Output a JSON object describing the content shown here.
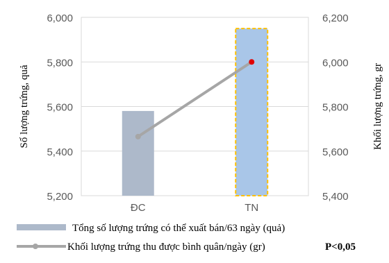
{
  "chart_data": {
    "type": "bar+line",
    "categories": [
      "ĐC",
      "TN"
    ],
    "series": [
      {
        "name": "Tổng số lượng trứng có thể xuất bán/63 ngày (quả)",
        "type": "bar",
        "axis": "left",
        "values": [
          5580,
          5950
        ],
        "colors": [
          "#adb9ca",
          "#a9c6e8"
        ],
        "highlight_index": 1
      },
      {
        "name": "Khối lượng trứng thu được bình quân/ngày (gr)",
        "type": "line",
        "axis": "right",
        "values": [
          5665,
          6000
        ],
        "color": "#a6a6a6",
        "marker_colors": [
          "#a6a6a6",
          "#e00000"
        ]
      }
    ],
    "y_left": {
      "label": "Số lượng trứng, quả",
      "min": 5200,
      "max": 6000,
      "ticks": [
        5200,
        5400,
        5600,
        5800,
        6000
      ],
      "tick_labels": [
        "5,200",
        "5,400",
        "5,600",
        "5,800",
        "6,000"
      ]
    },
    "y_right": {
      "label": "Khối lượng trứng, gr",
      "min": 5400,
      "max": 6200,
      "ticks": [
        5400,
        5600,
        5800,
        6000,
        6200
      ],
      "tick_labels": [
        "5,400",
        "5,600",
        "5,800",
        "6,000",
        "6,200"
      ]
    },
    "grid": true,
    "legend_position": "bottom",
    "annotation": "P<0,05",
    "highlight_color": "#ffc000"
  }
}
